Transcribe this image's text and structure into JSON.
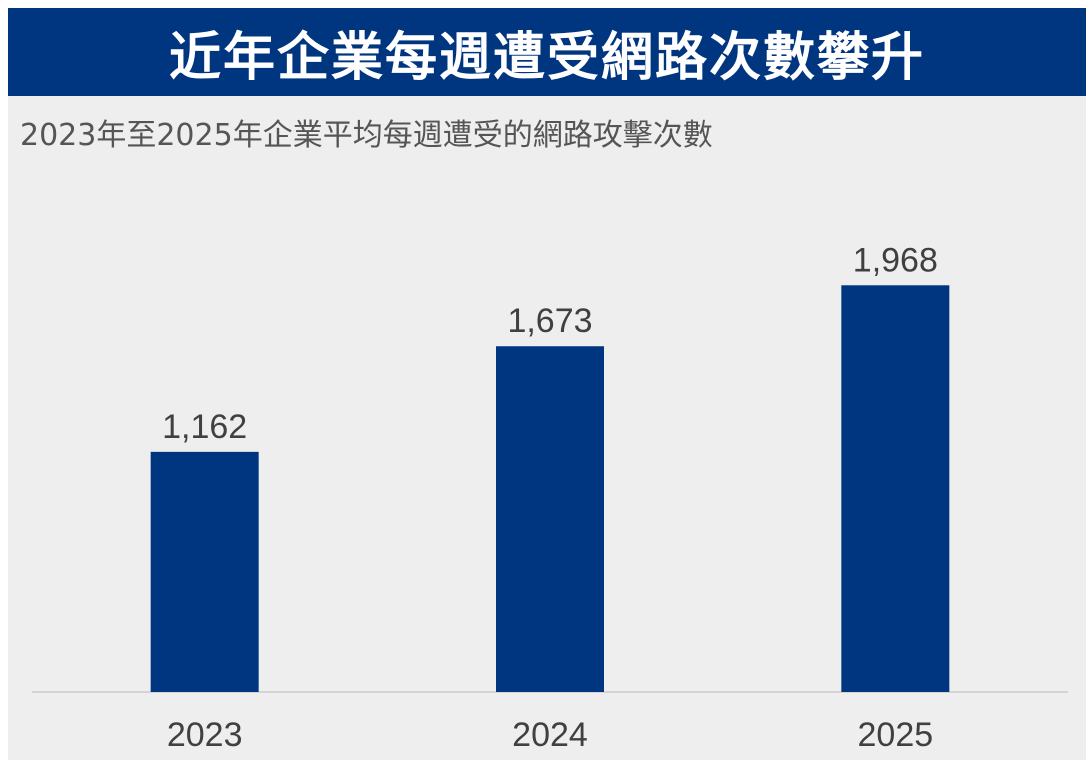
{
  "header": {
    "title": "近年企業每週遭受網路次數攀升"
  },
  "colors": {
    "header_bg": "#003580",
    "bar": "#003580",
    "panel_bg": "#eeeeee",
    "text": "#404040"
  },
  "chart_data": {
    "type": "bar",
    "title": "近年企業每週遭受網路次數攀升",
    "subtitle": "2023年至2025年企業平均每週遭受的網路攻擊次數",
    "categories": [
      "2023",
      "2024",
      "2025"
    ],
    "values": [
      1162,
      1673,
      1968
    ],
    "value_labels": [
      "1,162",
      "1,673",
      "1,968"
    ],
    "xlabel": "",
    "ylabel": "",
    "ylim": [
      0,
      2400
    ],
    "grid": false,
    "legend": "none"
  }
}
